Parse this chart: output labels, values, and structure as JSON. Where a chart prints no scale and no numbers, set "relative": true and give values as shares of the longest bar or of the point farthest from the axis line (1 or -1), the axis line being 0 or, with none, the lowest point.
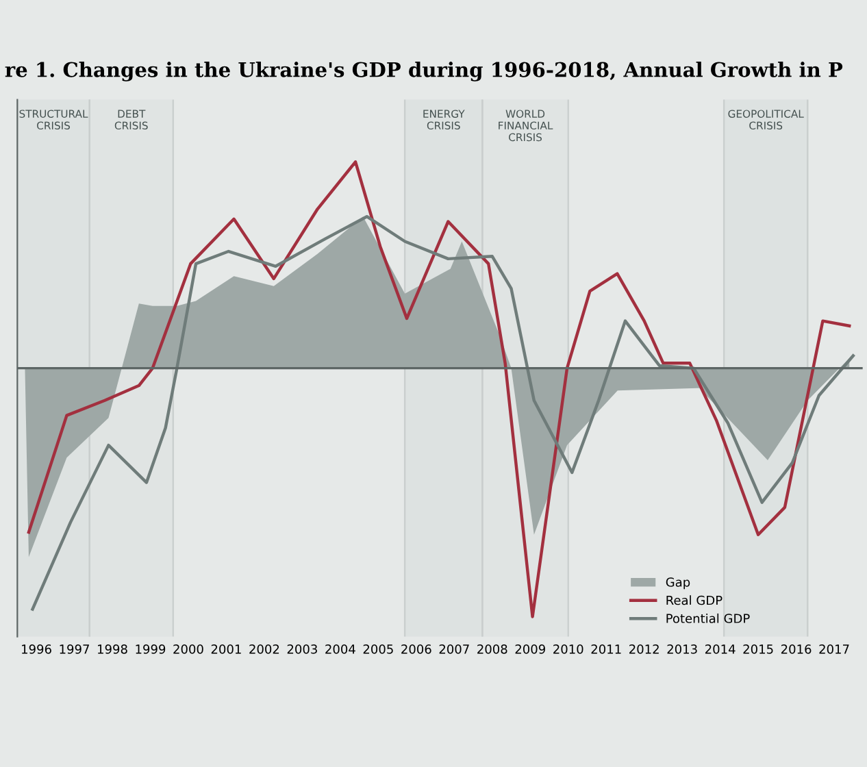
{
  "chart_data": {
    "type": "line",
    "title": "re 1. Changes in the Ukraine's GDP during 1996-2018, Annual Growth in P",
    "relative": true,
    "xlim": [
      1995.5,
      2017.75
    ],
    "xticks": [
      1996,
      1997,
      1998,
      1999,
      2000,
      2001,
      2002,
      2003,
      2004,
      2005,
      2006,
      2007,
      2008,
      2009,
      2010,
      2011,
      2012,
      2013,
      2014,
      2015,
      2016,
      2017
    ],
    "series": [
      {
        "name": "Gap",
        "type": "area",
        "color": "#9ea8a6",
        "x": [
          1995.7,
          1995.8,
          1996.8,
          1997.9,
          1998.7,
          1999.06,
          1999.7,
          2000.2,
          2001.2,
          2002.25,
          2003.4,
          2004.6,
          2005.7,
          2006.9,
          2007.2,
          2008.2,
          2008.5,
          2009.1,
          2009.97,
          2011.3,
          2013.45,
          2015.25,
          2016.3,
          2017.4
        ],
        "values": [
          0,
          -0.76,
          -0.36,
          -0.2,
          0.26,
          0.25,
          0.25,
          0.27,
          0.37,
          0.33,
          0.46,
          0.61,
          0.3,
          0.4,
          0.51,
          0.13,
          0,
          -0.67,
          -0.31,
          -0.09,
          -0.08,
          -0.37,
          -0.13,
          0.04
        ]
      },
      {
        "name": "Real GDP",
        "color": "#a3303f",
        "x": [
          1995.8,
          1996.8,
          1997.8,
          1998.7,
          1999.06,
          2000.06,
          2001.2,
          2002.25,
          2003.4,
          2004.4,
          2005.05,
          2005.75,
          2006.84,
          2007.9,
          2008.34,
          2009.06,
          2009.97,
          2010.57,
          2011.29,
          2012.0,
          2012.5,
          2013.2,
          2013.9,
          2015.0,
          2015.7,
          2016.7,
          2017.4
        ],
        "values": [
          -0.66,
          -0.19,
          -0.13,
          -0.07,
          0,
          0.42,
          0.6,
          0.36,
          0.64,
          0.83,
          0.49,
          0.2,
          0.59,
          0.42,
          0.02,
          -1,
          0,
          0.31,
          0.38,
          0.19,
          0.02,
          0.02,
          -0.21,
          -0.67,
          -0.56,
          0.19,
          0.17
        ]
      },
      {
        "name": "Potential GDP",
        "color": "#6f7c7a",
        "x": [
          1995.9,
          1996.9,
          1997.9,
          1998.9,
          1999.4,
          1999.7,
          2000.2,
          2001.06,
          2002.3,
          2003.6,
          2004.7,
          2005.7,
          2006.84,
          2008.0,
          2008.5,
          2009.1,
          2010.1,
          2010.8,
          2011.5,
          2012.4,
          2013.3,
          2014.2,
          2015.1,
          2015.9,
          2016.6,
          2017.5
        ],
        "values": [
          -0.97,
          -0.62,
          -0.31,
          -0.46,
          -0.24,
          0,
          0.42,
          0.47,
          0.41,
          0.52,
          0.61,
          0.51,
          0.44,
          0.45,
          0.32,
          -0.13,
          -0.42,
          -0.13,
          0.19,
          0.01,
          0,
          -0.22,
          -0.54,
          -0.38,
          -0.11,
          0.05
        ]
      }
    ],
    "bands": [
      {
        "axis": "x",
        "from": 1995.5,
        "to": 1997.4,
        "label": "STRUCTURAL\nCRISIS",
        "color": "#dde2e1"
      },
      {
        "axis": "x",
        "from": 1997.4,
        "to": 1999.6,
        "label": "DEBT\nCRISIS",
        "color": "#e0e4e3"
      },
      {
        "axis": "x",
        "from": 2005.7,
        "to": 2007.74,
        "label": "ENERGY\nCRISIS",
        "color": "#dde2e1"
      },
      {
        "axis": "x",
        "from": 2007.74,
        "to": 2010.0,
        "label": "WORLD\nFINANCIAL\nCRISIS",
        "color": "#e0e4e3"
      },
      {
        "axis": "x",
        "from": 2014.1,
        "to": 2016.3,
        "label": "GEOPOLITICAL\nCRISIS",
        "color": "#dde2e1"
      }
    ],
    "legend": "bottom right"
  }
}
